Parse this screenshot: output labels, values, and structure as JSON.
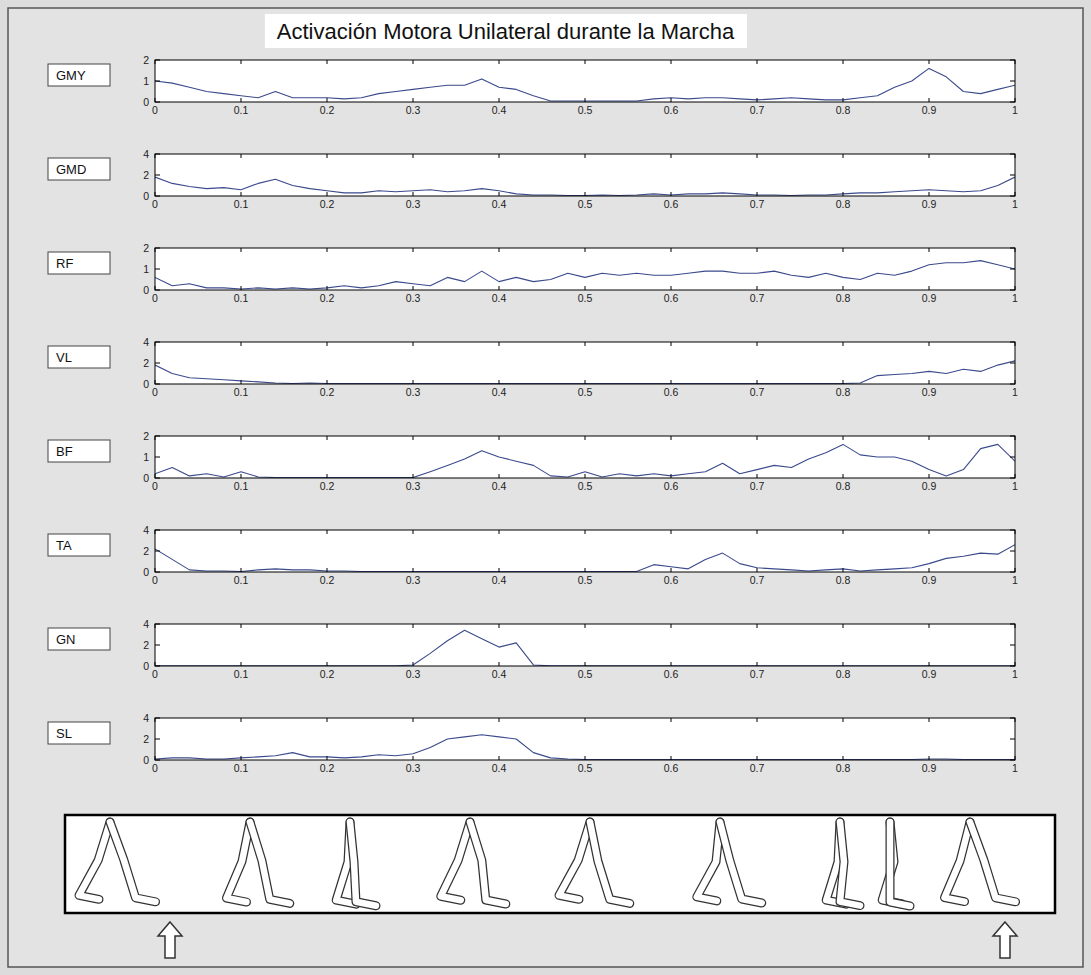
{
  "title": "Activación Motora Unilateral durante la Marcha",
  "chart_data": [
    {
      "type": "line",
      "xlim": [
        0,
        1
      ],
      "ylim": [
        0,
        2
      ],
      "yticks": [
        0,
        1,
        2
      ],
      "xticks": [
        0,
        0.1,
        0.2,
        0.3,
        0.4,
        0.5,
        0.6,
        0.7,
        0.8,
        0.9,
        1
      ],
      "x": [
        0,
        0.02,
        0.04,
        0.06,
        0.08,
        0.1,
        0.12,
        0.14,
        0.16,
        0.18,
        0.2,
        0.22,
        0.24,
        0.26,
        0.28,
        0.3,
        0.32,
        0.34,
        0.36,
        0.38,
        0.4,
        0.42,
        0.44,
        0.46,
        0.48,
        0.5,
        0.52,
        0.54,
        0.56,
        0.58,
        0.6,
        0.62,
        0.64,
        0.66,
        0.68,
        0.7,
        0.72,
        0.74,
        0.76,
        0.78,
        0.8,
        0.82,
        0.84,
        0.86,
        0.88,
        0.9,
        0.92,
        0.94,
        0.96,
        0.98,
        1
      ],
      "series": [
        {
          "name": "GMY",
          "color": "#3b4a8c",
          "values": [
            1.0,
            0.9,
            0.7,
            0.5,
            0.4,
            0.3,
            0.2,
            0.5,
            0.2,
            0.2,
            0.2,
            0.15,
            0.2,
            0.4,
            0.5,
            0.6,
            0.7,
            0.8,
            0.8,
            1.1,
            0.7,
            0.6,
            0.3,
            0.05,
            0.05,
            0.05,
            0.05,
            0.05,
            0.05,
            0.15,
            0.2,
            0.15,
            0.2,
            0.2,
            0.15,
            0.1,
            0.15,
            0.2,
            0.15,
            0.1,
            0.1,
            0.2,
            0.3,
            0.7,
            1.0,
            1.6,
            1.2,
            0.5,
            0.4,
            0.6,
            0.8
          ]
        }
      ]
    },
    {
      "type": "line",
      "xlim": [
        0,
        1
      ],
      "ylim": [
        0,
        4
      ],
      "yticks": [
        0,
        2,
        4
      ],
      "xticks": [
        0,
        0.1,
        0.2,
        0.3,
        0.4,
        0.5,
        0.6,
        0.7,
        0.8,
        0.9,
        1
      ],
      "x": [
        0,
        0.02,
        0.04,
        0.06,
        0.08,
        0.1,
        0.12,
        0.14,
        0.16,
        0.18,
        0.2,
        0.22,
        0.24,
        0.26,
        0.28,
        0.3,
        0.32,
        0.34,
        0.36,
        0.38,
        0.4,
        0.42,
        0.44,
        0.46,
        0.48,
        0.5,
        0.52,
        0.54,
        0.56,
        0.58,
        0.6,
        0.62,
        0.64,
        0.66,
        0.68,
        0.7,
        0.72,
        0.74,
        0.76,
        0.78,
        0.8,
        0.82,
        0.84,
        0.86,
        0.88,
        0.9,
        0.92,
        0.94,
        0.96,
        0.98,
        1
      ],
      "series": [
        {
          "name": "GMD",
          "color": "#3b4a8c",
          "values": [
            1.8,
            1.2,
            0.9,
            0.7,
            0.8,
            0.6,
            1.2,
            1.6,
            1.0,
            0.7,
            0.5,
            0.3,
            0.3,
            0.5,
            0.4,
            0.5,
            0.6,
            0.4,
            0.5,
            0.7,
            0.5,
            0.2,
            0.1,
            0.1,
            0.05,
            0.05,
            0.1,
            0.05,
            0.1,
            0.2,
            0.1,
            0.2,
            0.2,
            0.3,
            0.2,
            0.1,
            0.1,
            0.05,
            0.1,
            0.1,
            0.2,
            0.3,
            0.3,
            0.4,
            0.5,
            0.6,
            0.5,
            0.4,
            0.5,
            1.0,
            1.8
          ]
        }
      ]
    },
    {
      "type": "line",
      "xlim": [
        0,
        1
      ],
      "ylim": [
        0,
        2
      ],
      "yticks": [
        0,
        1,
        2
      ],
      "xticks": [
        0,
        0.1,
        0.2,
        0.3,
        0.4,
        0.5,
        0.6,
        0.7,
        0.8,
        0.9,
        1
      ],
      "x": [
        0,
        0.02,
        0.04,
        0.06,
        0.08,
        0.1,
        0.12,
        0.14,
        0.16,
        0.18,
        0.2,
        0.22,
        0.24,
        0.26,
        0.28,
        0.3,
        0.32,
        0.34,
        0.36,
        0.38,
        0.4,
        0.42,
        0.44,
        0.46,
        0.48,
        0.5,
        0.52,
        0.54,
        0.56,
        0.58,
        0.6,
        0.62,
        0.64,
        0.66,
        0.68,
        0.7,
        0.72,
        0.74,
        0.76,
        0.78,
        0.8,
        0.82,
        0.84,
        0.86,
        0.88,
        0.9,
        0.92,
        0.94,
        0.96,
        0.98,
        1
      ],
      "series": [
        {
          "name": "RF",
          "color": "#3b4a8c",
          "values": [
            0.6,
            0.2,
            0.3,
            0.1,
            0.1,
            0.05,
            0.1,
            0.05,
            0.1,
            0.05,
            0.1,
            0.2,
            0.1,
            0.2,
            0.4,
            0.3,
            0.2,
            0.6,
            0.4,
            0.9,
            0.4,
            0.6,
            0.4,
            0.5,
            0.8,
            0.6,
            0.8,
            0.7,
            0.8,
            0.7,
            0.7,
            0.8,
            0.9,
            0.9,
            0.8,
            0.8,
            0.9,
            0.7,
            0.6,
            0.8,
            0.6,
            0.5,
            0.8,
            0.7,
            0.9,
            1.2,
            1.3,
            1.3,
            1.4,
            1.2,
            1.0
          ]
        }
      ]
    },
    {
      "type": "line",
      "xlim": [
        0,
        1
      ],
      "ylim": [
        0,
        4
      ],
      "yticks": [
        0,
        2,
        4
      ],
      "xticks": [
        0,
        0.1,
        0.2,
        0.3,
        0.4,
        0.5,
        0.6,
        0.7,
        0.8,
        0.9,
        1
      ],
      "x": [
        0,
        0.02,
        0.04,
        0.06,
        0.08,
        0.1,
        0.12,
        0.14,
        0.16,
        0.18,
        0.2,
        0.22,
        0.24,
        0.26,
        0.28,
        0.3,
        0.32,
        0.34,
        0.36,
        0.38,
        0.4,
        0.42,
        0.44,
        0.46,
        0.48,
        0.5,
        0.52,
        0.54,
        0.56,
        0.58,
        0.6,
        0.62,
        0.64,
        0.66,
        0.68,
        0.7,
        0.72,
        0.74,
        0.76,
        0.78,
        0.8,
        0.82,
        0.84,
        0.86,
        0.88,
        0.9,
        0.92,
        0.94,
        0.96,
        0.98,
        1
      ],
      "series": [
        {
          "name": "VL",
          "color": "#3b4a8c",
          "values": [
            1.8,
            1.0,
            0.6,
            0.5,
            0.4,
            0.3,
            0.2,
            0.1,
            0.05,
            0.1,
            0.05,
            0.05,
            0.05,
            0.05,
            0.05,
            0.05,
            0.05,
            0.05,
            0.05,
            0.05,
            0.05,
            0.05,
            0.05,
            0.05,
            0.05,
            0.05,
            0.05,
            0.05,
            0.05,
            0.05,
            0.05,
            0.05,
            0.05,
            0.05,
            0.05,
            0.05,
            0.05,
            0.05,
            0.05,
            0.05,
            0.05,
            0.1,
            0.8,
            0.9,
            1.0,
            1.2,
            1.0,
            1.4,
            1.2,
            1.8,
            2.2
          ]
        }
      ]
    },
    {
      "type": "line",
      "xlim": [
        0,
        1
      ],
      "ylim": [
        0,
        2
      ],
      "yticks": [
        0,
        1,
        2
      ],
      "xticks": [
        0,
        0.1,
        0.2,
        0.3,
        0.4,
        0.5,
        0.6,
        0.7,
        0.8,
        0.9,
        1
      ],
      "x": [
        0,
        0.02,
        0.04,
        0.06,
        0.08,
        0.1,
        0.12,
        0.14,
        0.16,
        0.18,
        0.2,
        0.22,
        0.24,
        0.26,
        0.28,
        0.3,
        0.32,
        0.34,
        0.36,
        0.38,
        0.4,
        0.42,
        0.44,
        0.46,
        0.48,
        0.5,
        0.52,
        0.54,
        0.56,
        0.58,
        0.6,
        0.62,
        0.64,
        0.66,
        0.68,
        0.7,
        0.72,
        0.74,
        0.76,
        0.78,
        0.8,
        0.82,
        0.84,
        0.86,
        0.88,
        0.9,
        0.92,
        0.94,
        0.96,
        0.98,
        1
      ],
      "series": [
        {
          "name": "BF",
          "color": "#3b4a8c",
          "values": [
            0.2,
            0.5,
            0.1,
            0.2,
            0.05,
            0.3,
            0.05,
            0.02,
            0.02,
            0.02,
            0.02,
            0.02,
            0.02,
            0.02,
            0.02,
            0.02,
            0.3,
            0.6,
            0.9,
            1.3,
            1.0,
            0.8,
            0.6,
            0.1,
            0.05,
            0.3,
            0.05,
            0.2,
            0.1,
            0.2,
            0.1,
            0.2,
            0.3,
            0.7,
            0.2,
            0.4,
            0.6,
            0.5,
            0.9,
            1.2,
            1.6,
            1.1,
            1.0,
            1.0,
            0.8,
            0.4,
            0.1,
            0.4,
            1.4,
            1.6,
            0.8
          ]
        }
      ]
    },
    {
      "type": "line",
      "xlim": [
        0,
        1
      ],
      "ylim": [
        0,
        4
      ],
      "yticks": [
        0,
        2,
        4
      ],
      "xticks": [
        0,
        0.1,
        0.2,
        0.3,
        0.4,
        0.5,
        0.6,
        0.7,
        0.8,
        0.9,
        1
      ],
      "x": [
        0,
        0.02,
        0.04,
        0.06,
        0.08,
        0.1,
        0.12,
        0.14,
        0.16,
        0.18,
        0.2,
        0.22,
        0.24,
        0.26,
        0.28,
        0.3,
        0.32,
        0.34,
        0.36,
        0.38,
        0.4,
        0.42,
        0.44,
        0.46,
        0.48,
        0.5,
        0.52,
        0.54,
        0.56,
        0.58,
        0.6,
        0.62,
        0.64,
        0.66,
        0.68,
        0.7,
        0.72,
        0.74,
        0.76,
        0.78,
        0.8,
        0.82,
        0.84,
        0.86,
        0.88,
        0.9,
        0.92,
        0.94,
        0.96,
        0.98,
        1
      ],
      "series": [
        {
          "name": "TA",
          "color": "#3b4a8c",
          "values": [
            2.2,
            1.2,
            0.2,
            0.1,
            0.1,
            0.05,
            0.2,
            0.3,
            0.2,
            0.2,
            0.1,
            0.1,
            0.05,
            0.05,
            0.05,
            0.05,
            0.05,
            0.05,
            0.05,
            0.05,
            0.05,
            0.05,
            0.05,
            0.05,
            0.05,
            0.05,
            0.05,
            0.05,
            0.05,
            0.7,
            0.5,
            0.3,
            1.2,
            1.8,
            0.8,
            0.4,
            0.3,
            0.2,
            0.1,
            0.2,
            0.3,
            0.1,
            0.2,
            0.3,
            0.4,
            0.8,
            1.3,
            1.5,
            1.8,
            1.7,
            2.6
          ]
        }
      ]
    },
    {
      "type": "line",
      "xlim": [
        0,
        1
      ],
      "ylim": [
        0,
        4
      ],
      "yticks": [
        0,
        2,
        4
      ],
      "xticks": [
        0,
        0.1,
        0.2,
        0.3,
        0.4,
        0.5,
        0.6,
        0.7,
        0.8,
        0.9,
        1
      ],
      "x": [
        0,
        0.02,
        0.04,
        0.06,
        0.08,
        0.1,
        0.12,
        0.14,
        0.16,
        0.18,
        0.2,
        0.22,
        0.24,
        0.26,
        0.28,
        0.3,
        0.32,
        0.34,
        0.36,
        0.38,
        0.4,
        0.42,
        0.44,
        0.46,
        0.48,
        0.5,
        0.52,
        0.54,
        0.56,
        0.58,
        0.6,
        0.62,
        0.64,
        0.66,
        0.68,
        0.7,
        0.72,
        0.74,
        0.76,
        0.78,
        0.8,
        0.82,
        0.84,
        0.86,
        0.88,
        0.9,
        0.92,
        0.94,
        0.96,
        0.98,
        1
      ],
      "series": [
        {
          "name": "GN",
          "color": "#3b4a8c",
          "values": [
            0.02,
            0.02,
            0.02,
            0.02,
            0.02,
            0.02,
            0.02,
            0.02,
            0.02,
            0.02,
            0.02,
            0.02,
            0.02,
            0.02,
            0.02,
            0.1,
            1.2,
            2.4,
            3.4,
            2.6,
            1.8,
            2.2,
            0.1,
            0.02,
            0.02,
            0.02,
            0.02,
            0.02,
            0.02,
            0.02,
            0.02,
            0.02,
            0.02,
            0.02,
            0.02,
            0.02,
            0.02,
            0.02,
            0.02,
            0.02,
            0.02,
            0.02,
            0.02,
            0.02,
            0.02,
            0.02,
            0.02,
            0.02,
            0.02,
            0.02,
            0.02
          ]
        }
      ]
    },
    {
      "type": "line",
      "xlim": [
        0,
        1
      ],
      "ylim": [
        0,
        4
      ],
      "yticks": [
        0,
        2,
        4
      ],
      "xticks": [
        0,
        0.1,
        0.2,
        0.3,
        0.4,
        0.5,
        0.6,
        0.7,
        0.8,
        0.9,
        1
      ],
      "x": [
        0,
        0.02,
        0.04,
        0.06,
        0.08,
        0.1,
        0.12,
        0.14,
        0.16,
        0.18,
        0.2,
        0.22,
        0.24,
        0.26,
        0.28,
        0.3,
        0.32,
        0.34,
        0.36,
        0.38,
        0.4,
        0.42,
        0.44,
        0.46,
        0.48,
        0.5,
        0.52,
        0.54,
        0.56,
        0.58,
        0.6,
        0.62,
        0.64,
        0.66,
        0.68,
        0.7,
        0.72,
        0.74,
        0.76,
        0.78,
        0.8,
        0.82,
        0.84,
        0.86,
        0.88,
        0.9,
        0.92,
        0.94,
        0.96,
        0.98,
        1
      ],
      "series": [
        {
          "name": "SL",
          "color": "#3b4a8c",
          "values": [
            0.1,
            0.2,
            0.2,
            0.1,
            0.1,
            0.2,
            0.3,
            0.4,
            0.7,
            0.3,
            0.3,
            0.2,
            0.3,
            0.5,
            0.4,
            0.6,
            1.2,
            2.0,
            2.2,
            2.4,
            2.2,
            2.0,
            0.7,
            0.2,
            0.1,
            0.05,
            0.05,
            0.05,
            0.05,
            0.05,
            0.05,
            0.05,
            0.05,
            0.05,
            0.05,
            0.05,
            0.05,
            0.05,
            0.05,
            0.05,
            0.05,
            0.05,
            0.05,
            0.05,
            0.05,
            0.1,
            0.1,
            0.05,
            0.05,
            0.05,
            0.05
          ]
        }
      ]
    }
  ]
}
